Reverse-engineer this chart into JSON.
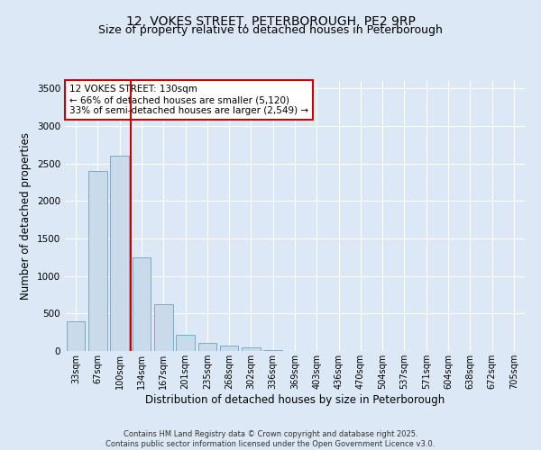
{
  "title_line1": "12, VOKES STREET, PETERBOROUGH, PE2 9RP",
  "title_line2": "Size of property relative to detached houses in Peterborough",
  "xlabel": "Distribution of detached houses by size in Peterborough",
  "ylabel": "Number of detached properties",
  "categories": [
    "33sqm",
    "67sqm",
    "100sqm",
    "134sqm",
    "167sqm",
    "201sqm",
    "235sqm",
    "268sqm",
    "302sqm",
    "336sqm",
    "369sqm",
    "403sqm",
    "436sqm",
    "470sqm",
    "504sqm",
    "537sqm",
    "571sqm",
    "604sqm",
    "638sqm",
    "672sqm",
    "705sqm"
  ],
  "values": [
    400,
    2400,
    2600,
    1250,
    630,
    220,
    110,
    70,
    50,
    10,
    5,
    3,
    2,
    1,
    1,
    0,
    0,
    0,
    0,
    0,
    0
  ],
  "bar_color": "#c9daea",
  "bar_edge_color": "#7aaac8",
  "vline_color": "#cc0000",
  "vline_x": 2.5,
  "annotation_text": "12 VOKES STREET: 130sqm\n← 66% of detached houses are smaller (5,120)\n33% of semi-detached houses are larger (2,549) →",
  "annotation_box_facecolor": "#ffffff",
  "annotation_box_edgecolor": "#cc0000",
  "ylim": [
    0,
    3600
  ],
  "yticks": [
    0,
    500,
    1000,
    1500,
    2000,
    2500,
    3000,
    3500
  ],
  "bg_color": "#dce8f5",
  "title_fontsize": 10,
  "subtitle_fontsize": 9,
  "tick_fontsize": 7,
  "label_fontsize": 8.5,
  "annotation_fontsize": 7.5,
  "footer_fontsize": 6,
  "footer_text": "Contains HM Land Registry data © Crown copyright and database right 2025.\nContains public sector information licensed under the Open Government Licence v3.0."
}
